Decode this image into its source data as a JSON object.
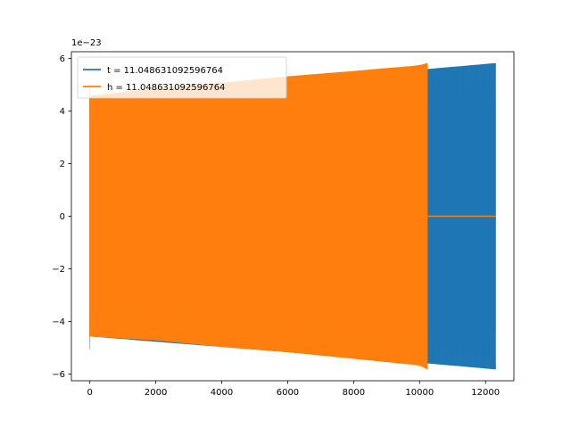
{
  "chart_data": {
    "type": "line",
    "title": "",
    "xlabel": "",
    "ylabel": "",
    "xlim": [
      -560,
      12860
    ],
    "ylim": [
      -6.25,
      6.25
    ],
    "y_offset_label": "1e−23",
    "x_ticks": [
      0,
      2000,
      4000,
      6000,
      8000,
      10000,
      12000
    ],
    "x_tick_labels": [
      "0",
      "2000",
      "4000",
      "6000",
      "8000",
      "10000",
      "12000"
    ],
    "y_ticks": [
      -6,
      -4,
      -2,
      0,
      2,
      4,
      6
    ],
    "y_tick_labels": [
      "−6",
      "−4",
      "−2",
      "0",
      "2",
      "4",
      "6"
    ],
    "grid": false,
    "legend_position": "top-left",
    "series": [
      {
        "name": "t = 11.048631092596764",
        "color": "#1f77b4",
        "x": [
          0,
          2000,
          4000,
          6000,
          8000,
          10000,
          12300
        ],
        "upper": [
          4.55,
          4.75,
          4.95,
          5.15,
          5.35,
          5.55,
          5.8
        ],
        "lower": [
          -4.55,
          -4.75,
          -4.95,
          -5.15,
          -5.35,
          -5.55,
          -5.8
        ]
      },
      {
        "name": "h = 11.048631092596764",
        "color": "#ff7f0e",
        "x": [
          0,
          2000,
          4000,
          6000,
          8000,
          10000,
          10230
        ],
        "upper": [
          4.55,
          4.85,
          5.05,
          5.3,
          5.5,
          5.72,
          5.8
        ],
        "lower": [
          -4.55,
          -4.7,
          -4.95,
          -5.15,
          -5.4,
          -5.65,
          -5.8
        ],
        "zero_tail_to": 12300
      }
    ]
  }
}
